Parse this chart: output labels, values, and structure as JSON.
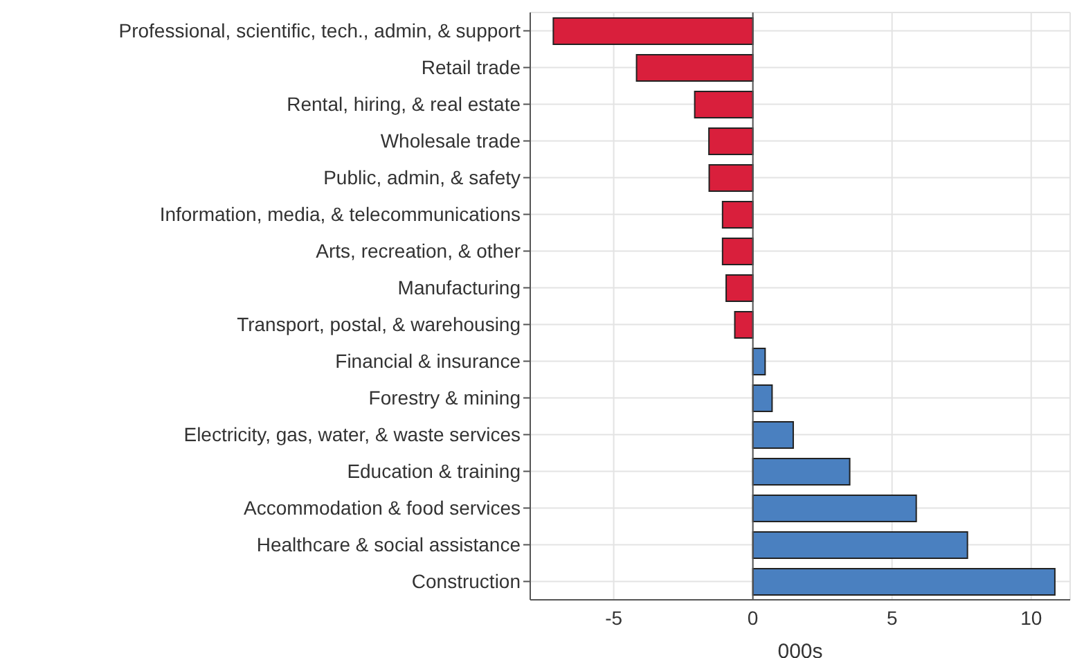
{
  "chart_data": {
    "type": "bar",
    "orientation": "horizontal",
    "xlabel": "000s",
    "categories": [
      "Professional, scientific, tech., admin, & support",
      "Retail trade",
      "Rental, hiring, & real estate",
      "Wholesale trade",
      "Public, admin, & safety",
      "Information, media, & telecommunications",
      "Arts, recreation, & other",
      "Manufacturing",
      "Transport, postal, & warehousing",
      "Financial & insurance",
      "Forestry & mining",
      "Electricity, gas, water, & waste services",
      "Education & training",
      "Accommodation & food services",
      "Healthcare & social assistance",
      "Construction"
    ],
    "values": [
      -7.17,
      -4.18,
      -2.09,
      -1.58,
      -1.57,
      -1.09,
      -1.09,
      -0.96,
      -0.65,
      0.44,
      0.69,
      1.45,
      3.48,
      5.87,
      7.71,
      10.85
    ],
    "colors": [
      "#d91f3c",
      "#d91f3c",
      "#d91f3c",
      "#d91f3c",
      "#d91f3c",
      "#d91f3c",
      "#d91f3c",
      "#d91f3c",
      "#d91f3c",
      "#4a80c0",
      "#4a80c0",
      "#4a80c0",
      "#4a80c0",
      "#4a80c0",
      "#4a80c0",
      "#4a80c0"
    ],
    "xlim": [
      -8,
      11.4
    ],
    "xticks": [
      -5,
      0,
      5,
      10
    ],
    "grid": true
  }
}
